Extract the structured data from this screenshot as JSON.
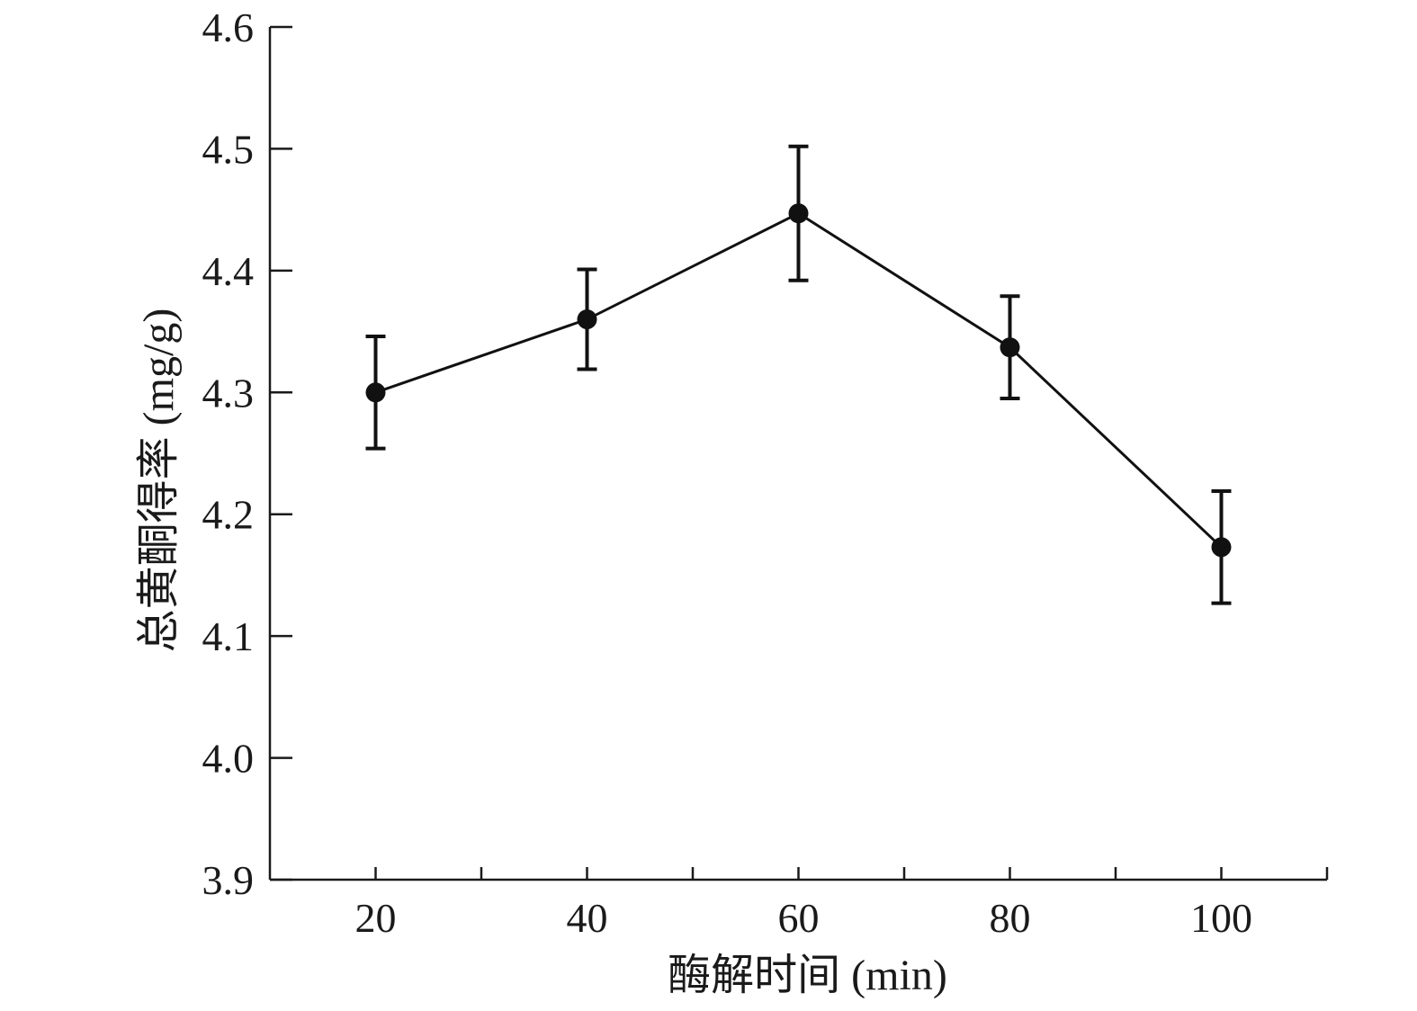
{
  "chart_data": {
    "type": "line",
    "xlabel": "酶解时间 (min)",
    "ylabel": "总黄酮得率 (mg/g)",
    "x": [
      20,
      40,
      60,
      80,
      100
    ],
    "series": [
      {
        "values": [
          4.3,
          4.36,
          4.447,
          4.337,
          4.173
        ],
        "error": [
          0.046,
          0.041,
          0.055,
          0.042,
          0.046
        ]
      }
    ],
    "xlim": [
      10,
      110
    ],
    "ylim": [
      3.9,
      4.6
    ],
    "xticks": [
      20,
      40,
      60,
      80,
      100
    ],
    "xminor": [
      30,
      50,
      70,
      90,
      110
    ],
    "yticks": [
      3.9,
      4.0,
      4.1,
      4.2,
      4.3,
      4.4,
      4.5,
      4.6
    ],
    "ytick_labels": [
      "3.9",
      "4.0",
      "4.1",
      "4.2",
      "4.3",
      "4.4",
      "4.5",
      "4.6"
    ],
    "grid": false,
    "legend": "none",
    "colors": {
      "line": "#111111",
      "axis": "#1a1a1a"
    }
  }
}
